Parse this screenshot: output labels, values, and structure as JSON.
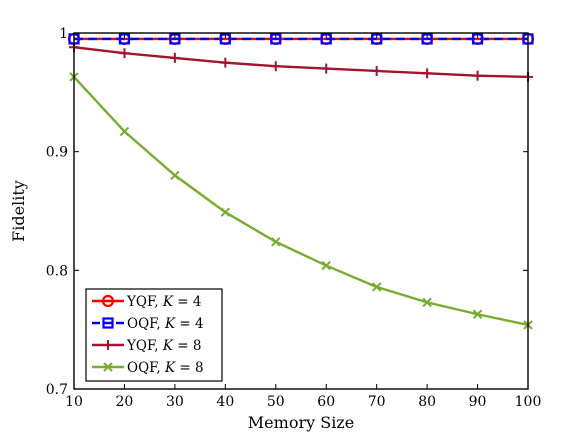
{
  "chart_data": {
    "type": "line",
    "xlabel": "Memory Size",
    "ylabel": "Fidelity",
    "xlim": [
      10,
      100
    ],
    "ylim": [
      0.7,
      1.0
    ],
    "x_ticks": [
      10,
      20,
      30,
      40,
      50,
      60,
      70,
      80,
      90,
      100
    ],
    "y_ticks": [
      0.7,
      0.8,
      0.9,
      1.0
    ],
    "x_tick_labels": [
      "10",
      "20",
      "30",
      "40",
      "50",
      "60",
      "70",
      "80",
      "90",
      "100"
    ],
    "y_tick_labels": [
      "0.7",
      "0.8",
      "0.9",
      "1"
    ],
    "grid": false,
    "legend_position": "bottom-left",
    "series": [
      {
        "name": "YQF, K = 4",
        "label_prefix": "YQF, ",
        "label_var": "K",
        "label_suffix": " = 4",
        "color": "#ff0000",
        "marker": "circle",
        "line_style": "solid",
        "x": [
          10,
          20,
          30,
          40,
          50,
          60,
          70,
          80,
          90,
          100
        ],
        "values": [
          0.995,
          0.995,
          0.995,
          0.995,
          0.995,
          0.995,
          0.995,
          0.995,
          0.995,
          0.995
        ]
      },
      {
        "name": "OQF, K = 4",
        "label_prefix": "OQF, ",
        "label_var": "K",
        "label_suffix": " = 4",
        "color": "#0000ff",
        "marker": "square",
        "line_style": "dashed",
        "x": [
          10,
          20,
          30,
          40,
          50,
          60,
          70,
          80,
          90,
          100
        ],
        "values": [
          0.995,
          0.995,
          0.995,
          0.995,
          0.995,
          0.995,
          0.995,
          0.995,
          0.995,
          0.995
        ]
      },
      {
        "name": "YQF, K = 8",
        "label_prefix": "YQF, ",
        "label_var": "K",
        "label_suffix": " = 8",
        "color": "#a2142f",
        "marker": "plus",
        "line_style": "solid",
        "x": [
          10,
          20,
          30,
          40,
          50,
          60,
          70,
          80,
          90,
          100
        ],
        "values": [
          0.988,
          0.983,
          0.979,
          0.975,
          0.972,
          0.97,
          0.968,
          0.966,
          0.964,
          0.963
        ]
      },
      {
        "name": "OQF, K = 8",
        "label_prefix": "OQF, ",
        "label_var": "K",
        "label_suffix": " = 8",
        "color": "#77ac30",
        "marker": "x",
        "line_style": "solid",
        "x": [
          10,
          20,
          30,
          40,
          50,
          60,
          70,
          80,
          90,
          100
        ],
        "values": [
          0.963,
          0.917,
          0.88,
          0.849,
          0.824,
          0.804,
          0.786,
          0.773,
          0.763,
          0.754
        ]
      }
    ]
  }
}
